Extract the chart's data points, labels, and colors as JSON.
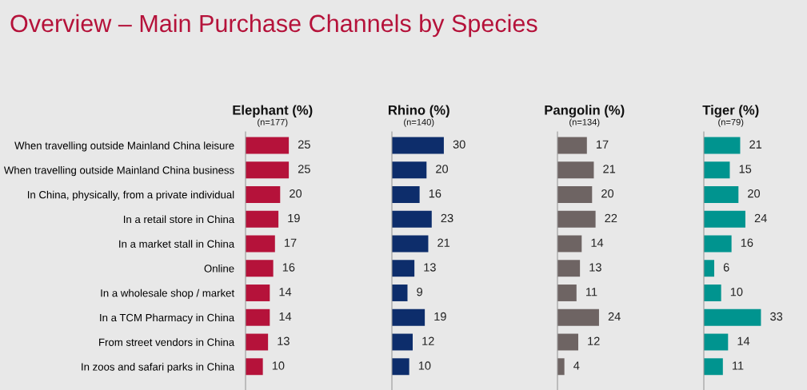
{
  "chart_data": [
    {
      "type": "bar",
      "orientation": "horizontal",
      "title": "Elephant (%)",
      "subtitle": "(n=177)",
      "annotations": [
        "Overview – Main Purchase Channels by Species"
      ],
      "categories": [
        "When travelling outside Mainland China leisure",
        "When travelling outside Mainland China business",
        "In China, physically, from a private individual",
        "In a retail store in China",
        "In a market stall in China",
        "Online",
        "In a wholesale shop / market",
        "In a TCM Pharmacy in China",
        "From street vendors in China",
        "In zoos and safari parks in China"
      ],
      "values": [
        25,
        25,
        20,
        19,
        17,
        16,
        14,
        14,
        13,
        10
      ],
      "color": "#b5123a",
      "data_labels": true,
      "tick_labels": "y"
    },
    {
      "type": "bar",
      "orientation": "horizontal",
      "title": "Rhino (%)",
      "subtitle": "(n=140)",
      "values": [
        30,
        20,
        16,
        23,
        21,
        13,
        9,
        19,
        12,
        10
      ],
      "color": "#0d2d6b",
      "data_labels": true,
      "tick_labels": false
    },
    {
      "type": "bar",
      "orientation": "horizontal",
      "title": "Pangolin (%)",
      "subtitle": "(n=134)",
      "values": [
        17,
        21,
        20,
        22,
        14,
        13,
        11,
        24,
        12,
        4
      ],
      "color": "#6e6463",
      "data_labels": true,
      "tick_labels": false
    },
    {
      "type": "bar",
      "orientation": "horizontal",
      "title": "Tiger (%)",
      "subtitle": "(n=79)",
      "values": [
        21,
        15,
        20,
        24,
        16,
        6,
        10,
        33,
        14,
        11
      ],
      "color": "#00948f",
      "data_labels": true,
      "tick_labels": false
    }
  ]
}
